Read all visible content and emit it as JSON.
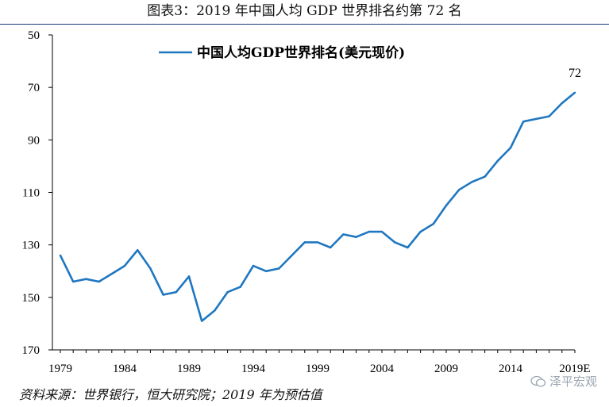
{
  "header": {
    "title": "图表3：2019 年中国人均 GDP 世界排名约第 72 名"
  },
  "footer": {
    "source": "资料来源：世界银行，恒大研究院；2019 年为预估值"
  },
  "watermark": {
    "text": "泽平宏观",
    "icon": "wechat-icon"
  },
  "chart_data": {
    "type": "line",
    "title": "",
    "xlabel": "",
    "ylabel": "",
    "y_inverted": true,
    "ylim": [
      50,
      170
    ],
    "yticks": [
      50,
      70,
      90,
      110,
      130,
      150,
      170
    ],
    "xlim": [
      1979,
      2019
    ],
    "xticks": [
      1979,
      1984,
      1989,
      1994,
      1999,
      2004,
      2009,
      2014,
      2019
    ],
    "xtick_labels": [
      "1979",
      "1984",
      "1989",
      "1994",
      "1999",
      "2004",
      "2009",
      "2014",
      "2019E"
    ],
    "legend_position": "top-center",
    "grid": false,
    "series": [
      {
        "name": "中国人均GDP世界排名(美元现价)",
        "color": "#1f77c0",
        "x": [
          1979,
          1980,
          1981,
          1982,
          1983,
          1984,
          1985,
          1986,
          1987,
          1988,
          1989,
          1990,
          1991,
          1992,
          1993,
          1994,
          1995,
          1996,
          1997,
          1998,
          1999,
          2000,
          2001,
          2002,
          2003,
          2004,
          2005,
          2006,
          2007,
          2008,
          2009,
          2010,
          2011,
          2012,
          2013,
          2014,
          2015,
          2016,
          2017,
          2018,
          2019
        ],
        "values": [
          134,
          144,
          143,
          144,
          141,
          138,
          132,
          139,
          149,
          148,
          142,
          159,
          155,
          148,
          146,
          138,
          140,
          139,
          134,
          129,
          129,
          131,
          126,
          127,
          125,
          125,
          129,
          131,
          125,
          122,
          115,
          109,
          106,
          104,
          98,
          93,
          83,
          82,
          81,
          76,
          72
        ]
      }
    ],
    "annotations": [
      {
        "x": 2019,
        "y": 72,
        "text": "72"
      }
    ]
  }
}
